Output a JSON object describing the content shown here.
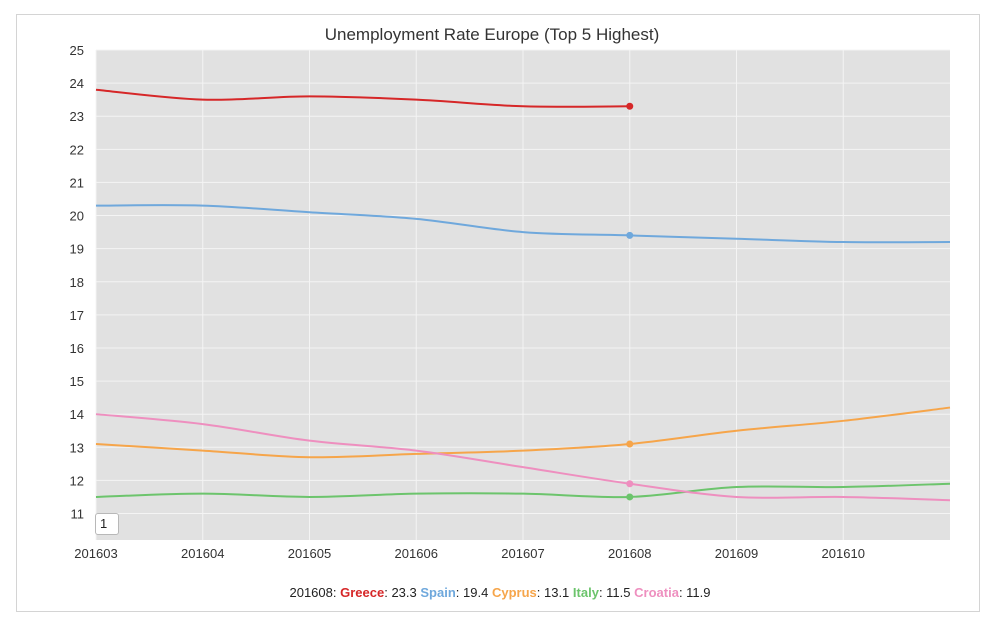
{
  "chart_data": {
    "type": "line",
    "title": "Unemployment Rate Europe (Top 5 Highest)",
    "x": [
      "201603",
      "201604",
      "201605",
      "201606",
      "201607",
      "201608",
      "201609",
      "201610",
      "201611"
    ],
    "x_tick_labels": [
      "201603",
      "201604",
      "201605",
      "201606",
      "201607",
      "201608",
      "201609",
      "201610"
    ],
    "ylim": [
      10.2,
      25
    ],
    "y_tick_labels": [
      "11",
      "12",
      "13",
      "14",
      "15",
      "16",
      "17",
      "18",
      "19",
      "20",
      "21",
      "22",
      "23",
      "24",
      "25"
    ],
    "grid": true,
    "background": "#e1e1e1",
    "series": [
      {
        "name": "Greece",
        "color": "#d62728",
        "values": [
          23.8,
          23.5,
          23.6,
          23.5,
          23.3,
          23.3,
          null,
          null,
          null
        ]
      },
      {
        "name": "Spain",
        "color": "#6fa8dc",
        "values": [
          20.3,
          20.3,
          20.1,
          19.9,
          19.5,
          19.4,
          19.3,
          19.2,
          19.2
        ]
      },
      {
        "name": "Cyprus",
        "color": "#f6a54a",
        "values": [
          13.1,
          12.9,
          12.7,
          12.8,
          12.9,
          13.1,
          13.5,
          13.8,
          14.2
        ]
      },
      {
        "name": "Italy",
        "color": "#6cc46c",
        "values": [
          11.5,
          11.6,
          11.5,
          11.6,
          11.6,
          11.5,
          11.8,
          11.8,
          11.9
        ]
      },
      {
        "name": "Croatia",
        "color": "#ee8fbf",
        "values": [
          14.0,
          13.7,
          13.2,
          12.9,
          12.4,
          11.9,
          11.5,
          11.5,
          11.4
        ]
      }
    ],
    "highlight": {
      "period": "201608",
      "entries": [
        {
          "name": "Greece",
          "value": "23.3"
        },
        {
          "name": "Spain",
          "value": "19.4"
        },
        {
          "name": "Cyprus",
          "value": "13.1"
        },
        {
          "name": "Italy",
          "value": "11.5"
        },
        {
          "name": "Croatia",
          "value": "11.9"
        }
      ]
    }
  },
  "range_selector": {
    "value": "1"
  }
}
